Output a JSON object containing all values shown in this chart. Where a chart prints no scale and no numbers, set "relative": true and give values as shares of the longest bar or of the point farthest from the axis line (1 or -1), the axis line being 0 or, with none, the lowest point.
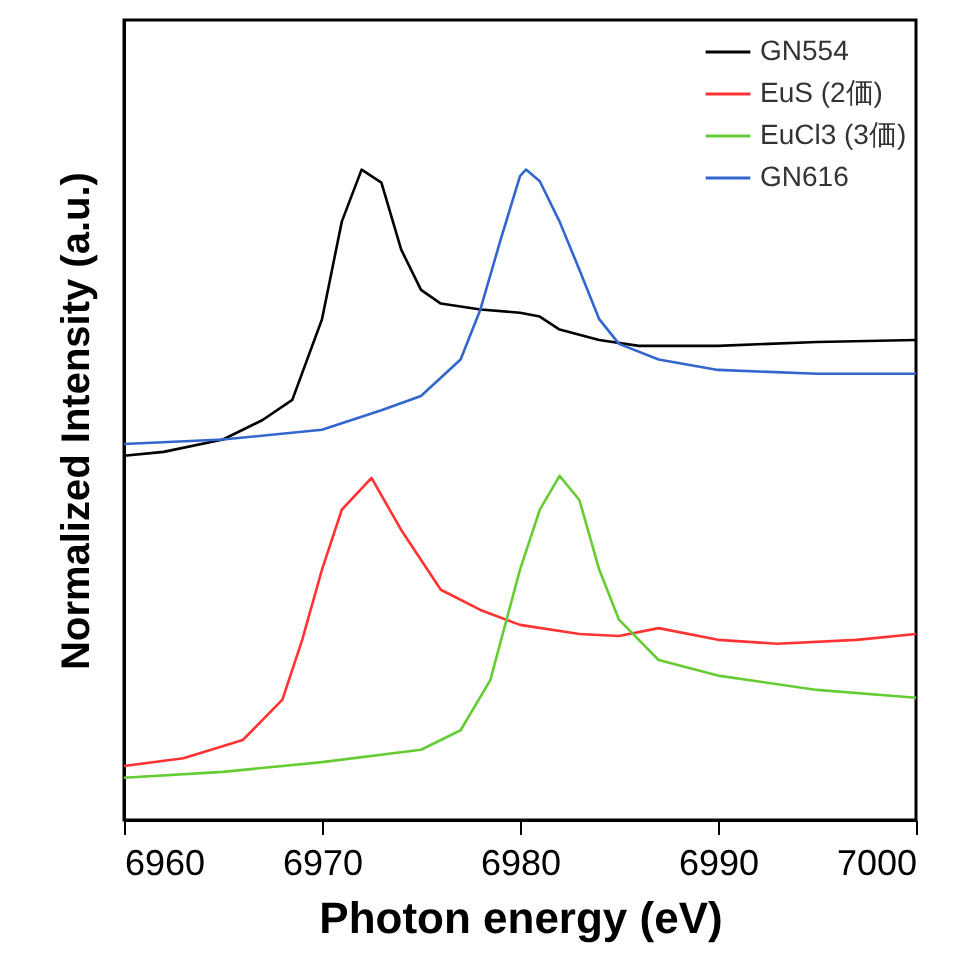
{
  "chart_data": {
    "type": "line",
    "xlabel": "Photon energy (eV)",
    "ylabel": "Normalized Intensity (a.u.)",
    "relative": true,
    "xlim": [
      6960,
      7000
    ],
    "xticks": [
      6960,
      6970,
      6980,
      6990,
      7000
    ],
    "legend": "top right",
    "grid": false,
    "marker": "none",
    "line_style": "solid",
    "series": [
      {
        "name": "GN554",
        "color": "#000000",
        "x": [
          6960,
          6962,
          6965,
          6967,
          6968.5,
          6970,
          6971,
          6972,
          6973,
          6974,
          6975,
          6976,
          6978,
          6980,
          6981,
          6982,
          6984,
          6986,
          6990,
          6995,
          7000
        ],
        "values": [
          0.56,
          0.566,
          0.585,
          0.615,
          0.646,
          0.77,
          0.92,
          1.0,
          0.98,
          0.877,
          0.815,
          0.794,
          0.785,
          0.78,
          0.774,
          0.754,
          0.738,
          0.729,
          0.729,
          0.735,
          0.738
        ]
      },
      {
        "name": "EuS (2価)",
        "color": "#ff3333",
        "x": [
          6960,
          6963,
          6966,
          6968,
          6969,
          6970,
          6971,
          6972.5,
          6974,
          6976,
          6978,
          6980,
          6983,
          6985,
          6987,
          6990,
          6993,
          6997,
          7000
        ],
        "values": [
          0.083,
          0.095,
          0.123,
          0.185,
          0.277,
          0.385,
          0.477,
          0.526,
          0.446,
          0.354,
          0.323,
          0.3,
          0.286,
          0.283,
          0.295,
          0.277,
          0.271,
          0.277,
          0.286
        ]
      },
      {
        "name": "EuCl3 (3価)",
        "color": "#66cc33",
        "x": [
          6960,
          6965,
          6970,
          6975,
          6977,
          6978.5,
          6980,
          6981,
          6982,
          6983,
          6984,
          6985,
          6987,
          6990,
          6995,
          7000
        ],
        "values": [
          0.065,
          0.074,
          0.089,
          0.108,
          0.138,
          0.215,
          0.385,
          0.477,
          0.529,
          0.492,
          0.385,
          0.308,
          0.246,
          0.222,
          0.2,
          0.188
        ]
      },
      {
        "name": "GN616",
        "color": "#3366cc",
        "x": [
          6960,
          6965,
          6970,
          6973,
          6975,
          6977,
          6978,
          6979,
          6980,
          6980.3,
          6981,
          6982,
          6983,
          6984,
          6985,
          6987,
          6990,
          6995,
          7000
        ],
        "values": [
          0.578,
          0.585,
          0.6,
          0.63,
          0.652,
          0.708,
          0.785,
          0.89,
          0.99,
          1.0,
          0.982,
          0.92,
          0.846,
          0.77,
          0.732,
          0.708,
          0.692,
          0.686,
          0.686
        ]
      }
    ]
  }
}
